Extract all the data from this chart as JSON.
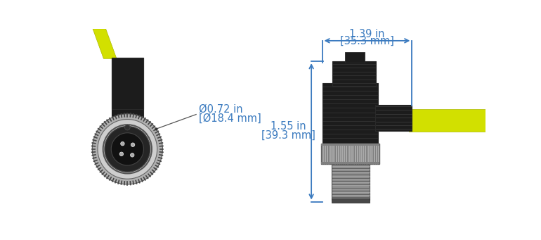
{
  "bg_color": "#ffffff",
  "yellow_color": "#d2e000",
  "black_color": "#1c1c1c",
  "gray_color": "#909090",
  "light_gray": "#c0c0c0",
  "med_gray": "#787878",
  "dark_gray": "#505050",
  "dim_line_color": "#3a7abf",
  "dim_text_color": "#3a7abf",
  "dim1_label_in": "1.39 in",
  "dim1_label_mm": "[35.3 mm]",
  "dim2_label_in": "1.55 in",
  "dim2_label_mm": "[39.3 mm]",
  "diam_label_in": "Ø0.72 in",
  "diam_label_mm": "[Ø18.4 mm]"
}
